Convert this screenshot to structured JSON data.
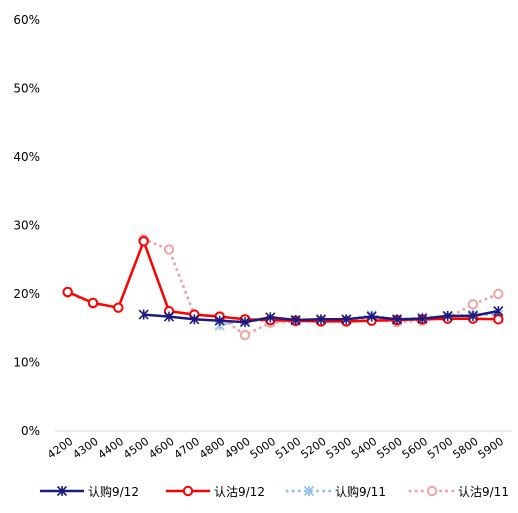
{
  "chart_data": {
    "type": "line",
    "title": "",
    "xlabel": "",
    "ylabel": "",
    "ylim": [
      0,
      60
    ],
    "yticks": [
      "0%",
      "10%",
      "20%",
      "30%",
      "40%",
      "50%",
      "60%"
    ],
    "grid": false,
    "legend_position": "bottom",
    "categories": [
      "4200",
      "4300",
      "4400",
      "4500",
      "4600",
      "4700",
      "4800",
      "4900",
      "5000",
      "5100",
      "5200",
      "5300",
      "5400",
      "5500",
      "5600",
      "5700",
      "5800",
      "5900"
    ],
    "series": [
      {
        "name": "认购9/12",
        "color": "#1a1a80",
        "style": "solid",
        "marker": "star",
        "values": [
          null,
          null,
          null,
          17.0,
          16.7,
          16.3,
          16.1,
          15.9,
          16.6,
          16.2,
          16.3,
          16.3,
          16.7,
          16.3,
          16.4,
          16.8,
          16.8,
          17.5
        ]
      },
      {
        "name": "认沽9/12",
        "color": "#ff0000",
        "style": "solid",
        "marker": "circle",
        "values": [
          20.3,
          18.7,
          18.0,
          27.7,
          17.5,
          17.0,
          16.7,
          16.3,
          16.2,
          16.1,
          16.0,
          16.0,
          16.1,
          16.2,
          16.3,
          16.4,
          16.4,
          16.3
        ]
      },
      {
        "name": "认购9/11",
        "color": "#99c2e6",
        "style": "dotted",
        "marker": "star",
        "values": [
          null,
          null,
          null,
          null,
          null,
          null,
          15.4,
          16.2,
          16.0,
          16.1,
          16.2,
          16.2,
          16.9,
          16.2,
          16.6,
          16.7,
          17.0,
          17.0
        ]
      },
      {
        "name": "认沽9/11",
        "color": "#f4a3a3",
        "style": "dotted",
        "marker": "circle",
        "values": [
          20.2,
          18.6,
          null,
          28.0,
          26.5,
          17.0,
          16.7,
          14.0,
          15.8,
          16.0,
          16.0,
          16.1,
          16.3,
          15.9,
          16.1,
          16.5,
          18.5,
          20.0
        ]
      }
    ]
  }
}
